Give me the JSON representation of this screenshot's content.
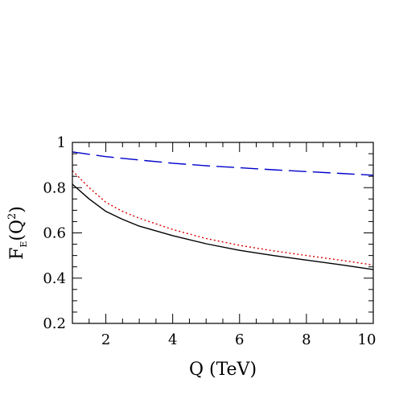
{
  "chart_data": {
    "type": "line",
    "xlabel": "Q (TeV)",
    "ylabel": {
      "base": "F",
      "sub": "E",
      "open": "(Q",
      "sup": "2",
      "close": ")"
    },
    "xlim": [
      1,
      10
    ],
    "ylim": [
      0.2,
      1.0
    ],
    "x_ticks": [
      2,
      4,
      6,
      8,
      10
    ],
    "y_ticks": [
      0.2,
      0.4,
      0.6,
      0.8,
      1.0
    ],
    "x_tick_labels": [
      "2",
      "4",
      "6",
      "8",
      "10"
    ],
    "y_tick_labels": [
      "0.2",
      "0.4",
      "0.6",
      "0.8",
      "1"
    ],
    "x_minor_step": 0.5,
    "y_minor_step": 0.05,
    "grid": false,
    "series": [
      {
        "style": "dashed",
        "color": "#0000cc",
        "x": [
          1,
          2,
          3,
          4,
          5,
          6,
          7,
          8,
          9,
          10
        ],
        "y": [
          0.958,
          0.937,
          0.922,
          0.908,
          0.897,
          0.888,
          0.879,
          0.871,
          0.863,
          0.855
        ]
      },
      {
        "style": "dotted",
        "color": "#dd0000",
        "x": [
          1,
          1.5,
          2,
          2.5,
          3,
          4,
          5,
          6,
          7,
          8,
          9,
          10
        ],
        "y": [
          0.875,
          0.8,
          0.735,
          0.695,
          0.665,
          0.615,
          0.575,
          0.545,
          0.521,
          0.5,
          0.48,
          0.458
        ]
      },
      {
        "style": "solid",
        "color": "#000000",
        "x": [
          1,
          1.5,
          2,
          2.5,
          3,
          4,
          5,
          6,
          7,
          8,
          9,
          10
        ],
        "y": [
          0.815,
          0.75,
          0.695,
          0.66,
          0.63,
          0.588,
          0.552,
          0.523,
          0.5,
          0.48,
          0.46,
          0.438
        ]
      }
    ]
  }
}
